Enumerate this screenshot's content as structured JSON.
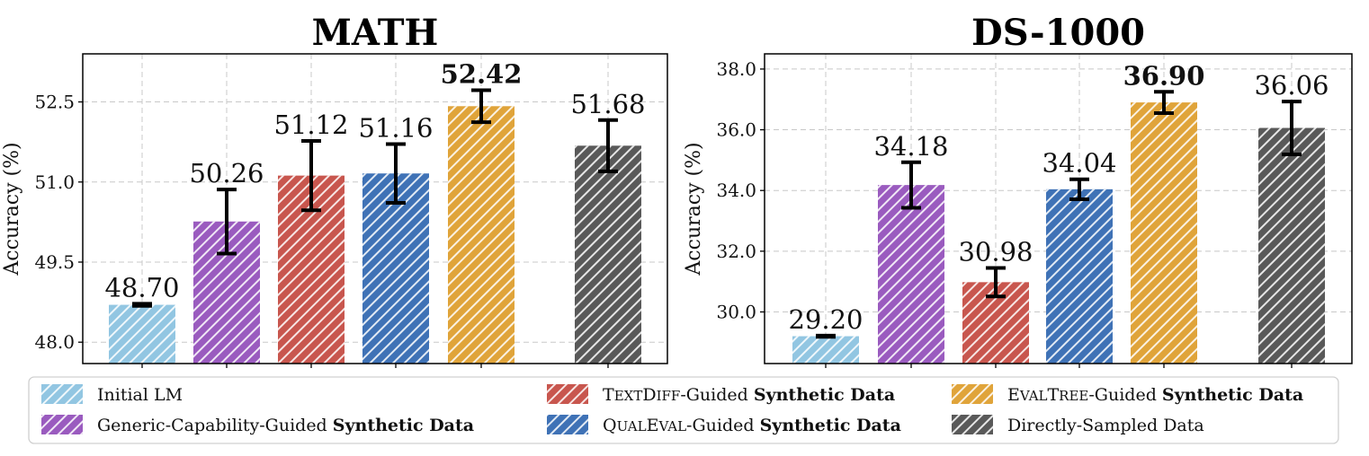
{
  "chart_data": [
    {
      "type": "bar",
      "title": "MATH",
      "ylabel": "Accuracy (%)",
      "ylim": [
        47.6,
        53.4
      ],
      "yticks": [
        48.0,
        49.5,
        51.0,
        52.5
      ],
      "ytick_labels": [
        "48.0",
        "49.5",
        "51.0",
        "52.5"
      ],
      "grid": true,
      "bars": [
        {
          "series": "initial",
          "value": 48.7,
          "error": 0.02,
          "label": "48.70",
          "bold": false
        },
        {
          "series": "generic",
          "value": 50.26,
          "error": 0.6,
          "label": "50.26",
          "bold": false
        },
        {
          "series": "textdiff",
          "value": 51.12,
          "error": 0.65,
          "label": "51.12",
          "bold": false
        },
        {
          "series": "qualeval",
          "value": 51.16,
          "error": 0.55,
          "label": "51.16",
          "bold": false
        },
        {
          "series": "evaltree",
          "value": 52.42,
          "error": 0.3,
          "label": "52.42",
          "bold": true
        },
        {
          "series": "direct",
          "value": 51.68,
          "error": 0.48,
          "label": "51.68",
          "bold": false
        }
      ]
    },
    {
      "type": "bar",
      "title": "DS-1000",
      "ylabel": "Accuracy (%)",
      "ylim": [
        28.3,
        38.5
      ],
      "yticks": [
        30.0,
        32.0,
        34.0,
        36.0,
        38.0
      ],
      "ytick_labels": [
        "30.0",
        "32.0",
        "34.0",
        "36.0",
        "38.0"
      ],
      "grid": true,
      "bars": [
        {
          "series": "initial",
          "value": 29.2,
          "error": 0.02,
          "label": "29.20",
          "bold": false
        },
        {
          "series": "generic",
          "value": 34.18,
          "error": 0.75,
          "label": "34.18",
          "bold": false
        },
        {
          "series": "textdiff",
          "value": 30.98,
          "error": 0.47,
          "label": "30.98",
          "bold": false
        },
        {
          "series": "qualeval",
          "value": 34.04,
          "error": 0.33,
          "label": "34.04",
          "bold": false
        },
        {
          "series": "evaltree",
          "value": 36.9,
          "error": 0.35,
          "label": "36.90",
          "bold": true
        },
        {
          "series": "direct",
          "value": 36.06,
          "error": 0.87,
          "label": "36.06",
          "bold": false
        }
      ]
    }
  ],
  "series_colors": {
    "initial": "#92c6e2",
    "generic": "#9a5bbf",
    "textdiff": "#c8564e",
    "qualeval": "#3f72b6",
    "evaltree": "#e0a43a",
    "direct": "#595959"
  },
  "legend": {
    "placement": "bottom",
    "items": [
      {
        "series": "initial",
        "parts": [
          {
            "t": "Initial LM"
          }
        ]
      },
      {
        "series": "generic",
        "parts": [
          {
            "t": "Generic-Capability-Guided "
          },
          {
            "t": "Synthetic Data",
            "b": true
          }
        ]
      },
      {
        "series": "textdiff",
        "parts": [
          {
            "t": "T"
          },
          {
            "t": "EXT",
            "sc": true
          },
          {
            "t": "D"
          },
          {
            "t": "IFF",
            "sc": true
          },
          {
            "t": "-Guided "
          },
          {
            "t": "Synthetic Data",
            "b": true
          }
        ]
      },
      {
        "series": "qualeval",
        "parts": [
          {
            "t": "Q"
          },
          {
            "t": "UAL",
            "sc": true
          },
          {
            "t": "E"
          },
          {
            "t": "VAL",
            "sc": true
          },
          {
            "t": "-Guided "
          },
          {
            "t": "Synthetic Data",
            "b": true
          }
        ]
      },
      {
        "series": "evaltree",
        "parts": [
          {
            "t": "E"
          },
          {
            "t": "VAL",
            "sc": true
          },
          {
            "t": "T"
          },
          {
            "t": "REE",
            "sc": true
          },
          {
            "t": "-Guided "
          },
          {
            "t": "Synthetic Data",
            "b": true
          }
        ]
      },
      {
        "series": "direct",
        "parts": [
          {
            "t": "Directly-Sampled Data"
          }
        ]
      }
    ]
  }
}
